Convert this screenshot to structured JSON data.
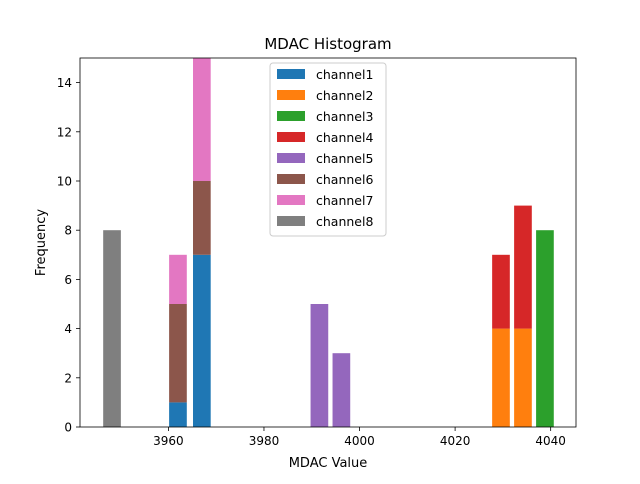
{
  "chart_data": {
    "type": "bar",
    "stacked": true,
    "title": "MDAC Histogram",
    "xlabel": "MDAC Value",
    "ylabel": "Frequency",
    "xlim": [
      3941.5,
      4045.3
    ],
    "ylim": [
      0,
      15
    ],
    "xticks": [
      3960,
      3980,
      4000,
      4020,
      4040
    ],
    "yticks": [
      0,
      2,
      4,
      6,
      8,
      10,
      12,
      14
    ],
    "bin_width": 3.7,
    "legend_position": "upper center",
    "series": [
      {
        "name": "channel1",
        "color": "#1f77b4",
        "bins": [
          {
            "x": 3962.0,
            "count": 1
          },
          {
            "x": 3967.0,
            "count": 7
          }
        ]
      },
      {
        "name": "channel2",
        "color": "#ff7f0e",
        "bins": [
          {
            "x": 4029.6,
            "count": 4
          },
          {
            "x": 4034.2,
            "count": 4
          }
        ]
      },
      {
        "name": "channel3",
        "color": "#2ca02c",
        "bins": [
          {
            "x": 4038.8,
            "count": 8
          }
        ]
      },
      {
        "name": "channel4",
        "color": "#d62728",
        "bins": [
          {
            "x": 4029.6,
            "count": 3
          },
          {
            "x": 4034.2,
            "count": 5
          }
        ]
      },
      {
        "name": "channel5",
        "color": "#9467bd",
        "bins": [
          {
            "x": 3991.6,
            "count": 5
          },
          {
            "x": 3996.2,
            "count": 3
          }
        ]
      },
      {
        "name": "channel6",
        "color": "#8c564b",
        "bins": [
          {
            "x": 3962.0,
            "count": 4
          },
          {
            "x": 3967.0,
            "count": 3
          }
        ]
      },
      {
        "name": "channel7",
        "color": "#e377c2",
        "bins": [
          {
            "x": 3962.0,
            "count": 2
          },
          {
            "x": 3967.0,
            "count": 5
          }
        ]
      },
      {
        "name": "channel8",
        "color": "#7f7f7f",
        "bins": [
          {
            "x": 3948.2,
            "count": 8
          }
        ]
      }
    ]
  }
}
